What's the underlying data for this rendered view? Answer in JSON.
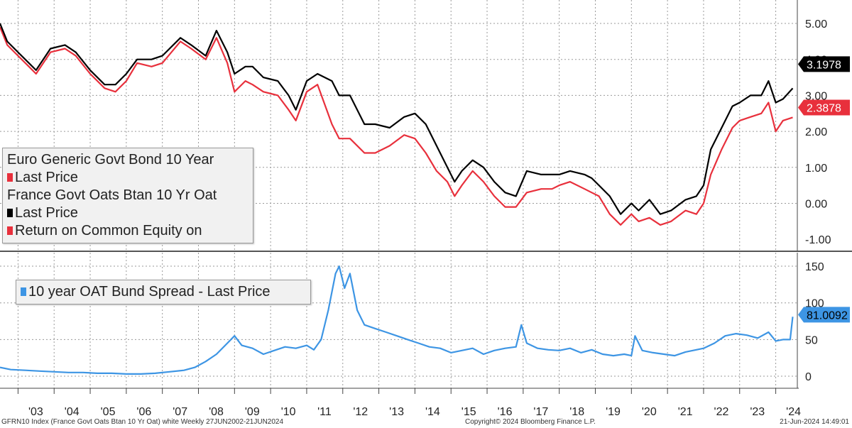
{
  "legend_top": {
    "title": "Euro Generic Govt Bond 10 Year",
    "lines": [
      "Last Price",
      "France Govt Oats Btan 10 Yr Oat",
      "Last Price",
      "Return on Common Equity on"
    ]
  },
  "legend_bottom": {
    "label": "10 year OAT Bund Spread - Last Price"
  },
  "colors": {
    "bund": "#e8303c",
    "oat": "#000000",
    "spread": "#3d95e4",
    "grid": "#9a9a9a",
    "divider": "#555555"
  },
  "footer": {
    "left": "GFRN10 Index (France Govt Oats Btan 10 Yr Oat) white  Weekly 27JUN2002-21JUN2024",
    "center": "Copyright© 2024 Bloomberg Finance L.P.",
    "right": "21-Jun-2024 14:49:01"
  },
  "chart_data": [
    {
      "type": "line",
      "ylim": [
        -1.0,
        5.0
      ],
      "yticks": [
        "5.00",
        "4.00",
        "3.00",
        "2.00",
        "1.00",
        "0.00",
        "-1.00"
      ],
      "ytick_values": [
        5,
        4,
        3,
        2,
        1,
        0,
        -1
      ],
      "grid": true,
      "last_value_labels": [
        {
          "series": "France Govt Oats Btan 10 Yr Oat",
          "label": "3.1978",
          "value": 3.1978
        },
        {
          "series": "Euro Generic Govt Bond 10 Year",
          "label": "2.3878",
          "value": 2.3878
        }
      ],
      "series": [
        {
          "name": "France Govt Oats Btan 10 Yr Oat",
          "x": [
            2002.5,
            2002.7,
            2003.0,
            2003.3,
            2003.5,
            2003.9,
            2004.3,
            2004.6,
            2005.0,
            2005.4,
            2005.7,
            2006.0,
            2006.3,
            2006.7,
            2007.0,
            2007.5,
            2007.8,
            2008.2,
            2008.5,
            2008.8,
            2009.0,
            2009.3,
            2009.5,
            2009.8,
            2010.2,
            2010.5,
            2010.7,
            2011.0,
            2011.3,
            2011.7,
            2011.9,
            2012.2,
            2012.6,
            2012.9,
            2013.3,
            2013.7,
            2014.0,
            2014.3,
            2014.6,
            2014.9,
            2015.1,
            2015.3,
            2015.6,
            2015.9,
            2016.2,
            2016.5,
            2016.8,
            2017.1,
            2017.5,
            2017.8,
            2018.0,
            2018.3,
            2018.7,
            2018.9,
            2019.1,
            2019.4,
            2019.7,
            2020.0,
            2020.2,
            2020.5,
            2020.8,
            2021.1,
            2021.5,
            2021.8,
            2022.0,
            2022.2,
            2022.5,
            2022.8,
            2023.0,
            2023.3,
            2023.6,
            2023.8,
            2024.0,
            2024.2,
            2024.47
          ],
          "values": [
            5.0,
            4.5,
            4.2,
            3.9,
            3.7,
            4.3,
            4.4,
            4.2,
            3.7,
            3.3,
            3.3,
            3.6,
            4.0,
            4.0,
            4.1,
            4.6,
            4.4,
            4.1,
            4.8,
            4.2,
            3.6,
            3.8,
            3.8,
            3.5,
            3.4,
            3.0,
            2.6,
            3.4,
            3.6,
            3.4,
            3.0,
            3.0,
            2.2,
            2.2,
            2.1,
            2.4,
            2.5,
            2.2,
            1.6,
            1.0,
            0.6,
            0.9,
            1.2,
            1.0,
            0.6,
            0.3,
            0.2,
            0.9,
            0.8,
            0.8,
            0.8,
            0.9,
            0.8,
            0.7,
            0.5,
            0.2,
            -0.3,
            0.0,
            -0.2,
            0.1,
            -0.3,
            -0.2,
            0.1,
            0.2,
            0.5,
            1.5,
            2.1,
            2.7,
            2.8,
            3.0,
            3.0,
            3.4,
            2.8,
            2.9,
            3.1978
          ]
        },
        {
          "name": "Euro Generic Govt Bond 10 Year",
          "x": [
            2002.5,
            2002.7,
            2003.0,
            2003.3,
            2003.5,
            2003.9,
            2004.3,
            2004.6,
            2005.0,
            2005.4,
            2005.7,
            2006.0,
            2006.3,
            2006.7,
            2007.0,
            2007.5,
            2007.8,
            2008.2,
            2008.5,
            2008.8,
            2009.0,
            2009.3,
            2009.5,
            2009.8,
            2010.2,
            2010.5,
            2010.7,
            2011.0,
            2011.3,
            2011.7,
            2011.9,
            2012.2,
            2012.6,
            2012.9,
            2013.3,
            2013.7,
            2014.0,
            2014.3,
            2014.6,
            2014.9,
            2015.1,
            2015.3,
            2015.6,
            2015.9,
            2016.2,
            2016.5,
            2016.8,
            2017.1,
            2017.5,
            2017.8,
            2018.0,
            2018.3,
            2018.7,
            2018.9,
            2019.1,
            2019.4,
            2019.7,
            2020.0,
            2020.2,
            2020.5,
            2020.8,
            2021.1,
            2021.5,
            2021.8,
            2022.0,
            2022.2,
            2022.5,
            2022.8,
            2023.0,
            2023.3,
            2023.6,
            2023.8,
            2024.0,
            2024.2,
            2024.47
          ],
          "values": [
            4.9,
            4.4,
            4.1,
            3.8,
            3.6,
            4.2,
            4.3,
            4.1,
            3.6,
            3.2,
            3.1,
            3.4,
            3.9,
            3.8,
            3.9,
            4.5,
            4.3,
            4.0,
            4.6,
            3.9,
            3.1,
            3.4,
            3.3,
            3.1,
            3.0,
            2.6,
            2.3,
            3.1,
            3.3,
            2.2,
            1.8,
            1.8,
            1.4,
            1.4,
            1.6,
            1.9,
            1.8,
            1.4,
            0.9,
            0.6,
            0.2,
            0.5,
            0.9,
            0.6,
            0.2,
            -0.1,
            -0.1,
            0.3,
            0.4,
            0.4,
            0.5,
            0.6,
            0.4,
            0.3,
            0.2,
            -0.3,
            -0.6,
            -0.3,
            -0.5,
            -0.4,
            -0.6,
            -0.5,
            -0.2,
            -0.3,
            0.0,
            0.8,
            1.5,
            2.1,
            2.3,
            2.4,
            2.5,
            2.8,
            2.0,
            2.3,
            2.3878
          ]
        }
      ]
    },
    {
      "type": "line",
      "ylim": [
        -10,
        155
      ],
      "yticks": [
        "150",
        "100",
        "50",
        "0"
      ],
      "ytick_values": [
        150,
        100,
        50,
        0
      ],
      "grid": true,
      "last_value_labels": [
        {
          "series": "10 year OAT Bund Spread - Last Price",
          "label": "81.0092",
          "value": 81.0092
        }
      ],
      "xticks": [
        "'03",
        "'04",
        "'05",
        "'06",
        "'07",
        "'08",
        "'09",
        "'10",
        "'11",
        "'12",
        "'13",
        "'14",
        "'15",
        "'16",
        "'17",
        "'18",
        "'19",
        "'20",
        "'21",
        "'22",
        "'23",
        "'24"
      ],
      "xtick_values": [
        2003,
        2004,
        2005,
        2006,
        2007,
        2008,
        2009,
        2010,
        2011,
        2012,
        2013,
        2014,
        2015,
        2016,
        2017,
        2018,
        2019,
        2020,
        2021,
        2022,
        2023,
        2024
      ],
      "series": [
        {
          "name": "10 year OAT Bund Spread - Last Price",
          "x": [
            2002.5,
            2002.8,
            2003.2,
            2003.6,
            2004.0,
            2004.4,
            2004.8,
            2005.2,
            2005.6,
            2006.0,
            2006.4,
            2006.8,
            2007.2,
            2007.6,
            2007.9,
            2008.2,
            2008.5,
            2008.8,
            2009.0,
            2009.2,
            2009.5,
            2009.8,
            2010.1,
            2010.4,
            2010.7,
            2011.0,
            2011.2,
            2011.4,
            2011.6,
            2011.8,
            2011.9,
            2012.05,
            2012.2,
            2012.4,
            2012.6,
            2012.9,
            2013.2,
            2013.5,
            2013.8,
            2014.1,
            2014.4,
            2014.7,
            2015.0,
            2015.3,
            2015.6,
            2015.9,
            2016.2,
            2016.5,
            2016.8,
            2016.95,
            2017.1,
            2017.4,
            2017.7,
            2018.0,
            2018.3,
            2018.6,
            2018.9,
            2019.2,
            2019.5,
            2019.8,
            2020.0,
            2020.1,
            2020.3,
            2020.6,
            2020.9,
            2021.2,
            2021.5,
            2021.8,
            2022.0,
            2022.3,
            2022.6,
            2022.9,
            2023.2,
            2023.5,
            2023.8,
            2024.0,
            2024.2,
            2024.4,
            2024.47
          ],
          "values": [
            12,
            9,
            8,
            7,
            6,
            5,
            5,
            4,
            4,
            3,
            3,
            4,
            6,
            8,
            12,
            20,
            30,
            45,
            55,
            42,
            38,
            30,
            35,
            40,
            38,
            42,
            36,
            50,
            90,
            140,
            150,
            120,
            140,
            90,
            70,
            65,
            60,
            55,
            50,
            45,
            40,
            38,
            32,
            35,
            38,
            30,
            35,
            38,
            40,
            70,
            45,
            38,
            36,
            35,
            38,
            32,
            36,
            30,
            28,
            30,
            28,
            55,
            35,
            32,
            30,
            28,
            33,
            36,
            38,
            45,
            55,
            58,
            56,
            52,
            60,
            48,
            50,
            50,
            81.0092
          ]
        }
      ]
    }
  ]
}
